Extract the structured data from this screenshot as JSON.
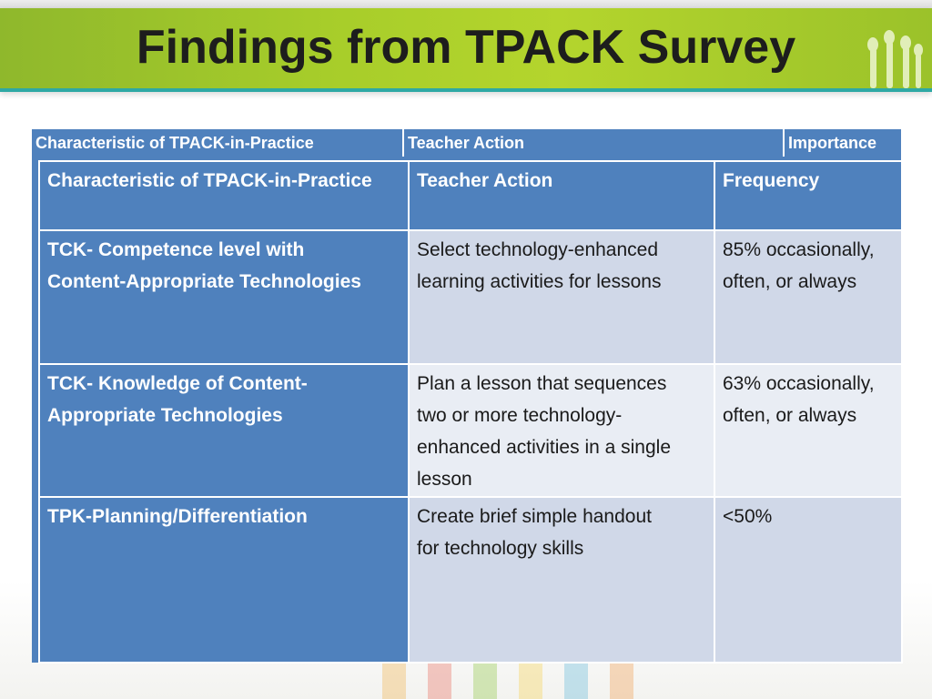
{
  "slide": {
    "title": "Findings from TPACK Survey"
  },
  "ghost_table": {
    "headers": [
      "Characteristic of TPACK-in-Practice",
      "Teacher Action",
      "Importance"
    ]
  },
  "table": {
    "headers": {
      "characteristic": "Characteristic of TPACK-in-Practice",
      "action": "Teacher Action",
      "frequency": "Frequency"
    },
    "rows": [
      {
        "characteristic_line1": "TCK- Competence level with",
        "characteristic_line2": "Content-Appropriate Technologies",
        "action_line1": "Select technology-enhanced",
        "action_line2": "learning activities for lessons",
        "action_line3": "",
        "action_line4": "",
        "frequency_line1": "85% occasionally,",
        "frequency_line2": "often, or always"
      },
      {
        "characteristic_line1": "TCK- Knowledge of Content-",
        "characteristic_line2": "Appropriate Technologies",
        "action_line1": "Plan a lesson that sequences",
        "action_line2": "two or more technology-",
        "action_line3": "enhanced activities in a single",
        "action_line4": "lesson",
        "frequency_line1": "63% occasionally,",
        "frequency_line2": "often, or always"
      },
      {
        "characteristic_line1": "TPK-Planning/Differentiation",
        "characteristic_line2": "",
        "action_line1": "Create brief simple handout",
        "action_line2": "for technology skills",
        "action_line3": "",
        "action_line4": "",
        "frequency_line1": "<50%",
        "frequency_line2": ""
      }
    ]
  },
  "colors": {
    "header_green": "#a7cd2a",
    "accent_teal": "#2ea8a4",
    "table_blue": "#4f81bd",
    "cell_light": "#d0d8e8",
    "cell_lighter": "#e9edf4"
  },
  "icons": {
    "logo": "raised-hands-icon"
  }
}
